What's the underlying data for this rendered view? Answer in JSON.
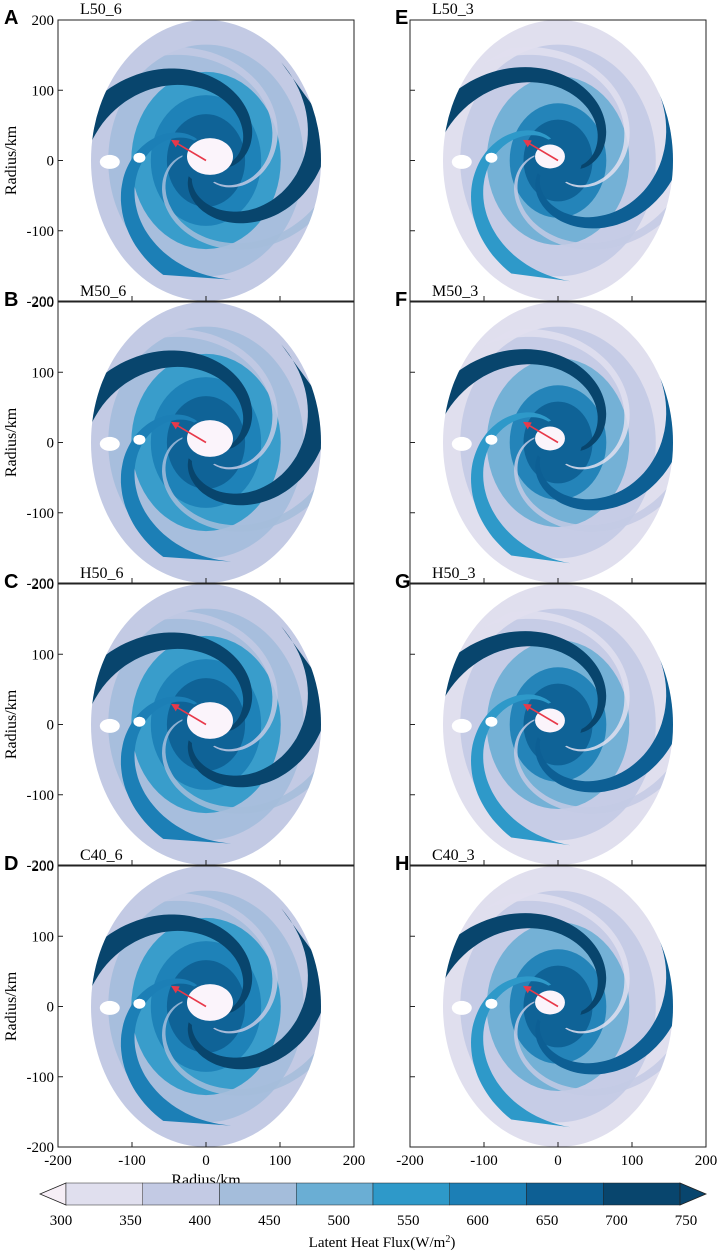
{
  "chart_data": {
    "type": "heatmap",
    "panels": [
      {
        "letter": "A",
        "title": "L50_6",
        "storm": "L50",
        "hours": 6
      },
      {
        "letter": "B",
        "title": "M50_6",
        "storm": "M50",
        "hours": 6
      },
      {
        "letter": "C",
        "title": "H50_6",
        "storm": "H50",
        "hours": 6
      },
      {
        "letter": "D",
        "title": "C40_6",
        "storm": "C40",
        "hours": 6
      },
      {
        "letter": "E",
        "title": "L50_3",
        "storm": "L50",
        "hours": 3
      },
      {
        "letter": "F",
        "title": "M50_3",
        "storm": "M50",
        "hours": 3
      },
      {
        "letter": "G",
        "title": "H50_3",
        "storm": "H50",
        "hours": 3
      },
      {
        "letter": "H",
        "title": "C40_3",
        "storm": "C40",
        "hours": 3
      }
    ],
    "xlabel": "Radius/km",
    "ylabel": "Radius/km",
    "xlim": [
      -200,
      200
    ],
    "ylim": [
      -200,
      200
    ],
    "xticks": [
      -200,
      -100,
      0,
      100,
      200
    ],
    "yticks": [
      200,
      100,
      0,
      -100,
      -200
    ],
    "grid": false,
    "colorbar": {
      "label": "Latent Heat Flux(W/m",
      "label_superscript": "2",
      "label_suffix": ")",
      "levels": [
        300,
        350,
        400,
        450,
        500,
        550,
        600,
        650,
        700,
        750
      ],
      "colors": [
        "#f6eef6",
        "#e0dfee",
        "#c3cae4",
        "#a4bddb",
        "#6aaed4",
        "#2e99c9",
        "#1c7fb6",
        "#0d5f94",
        "#08456d"
      ],
      "extend": "both",
      "placement": "bottom"
    }
  }
}
